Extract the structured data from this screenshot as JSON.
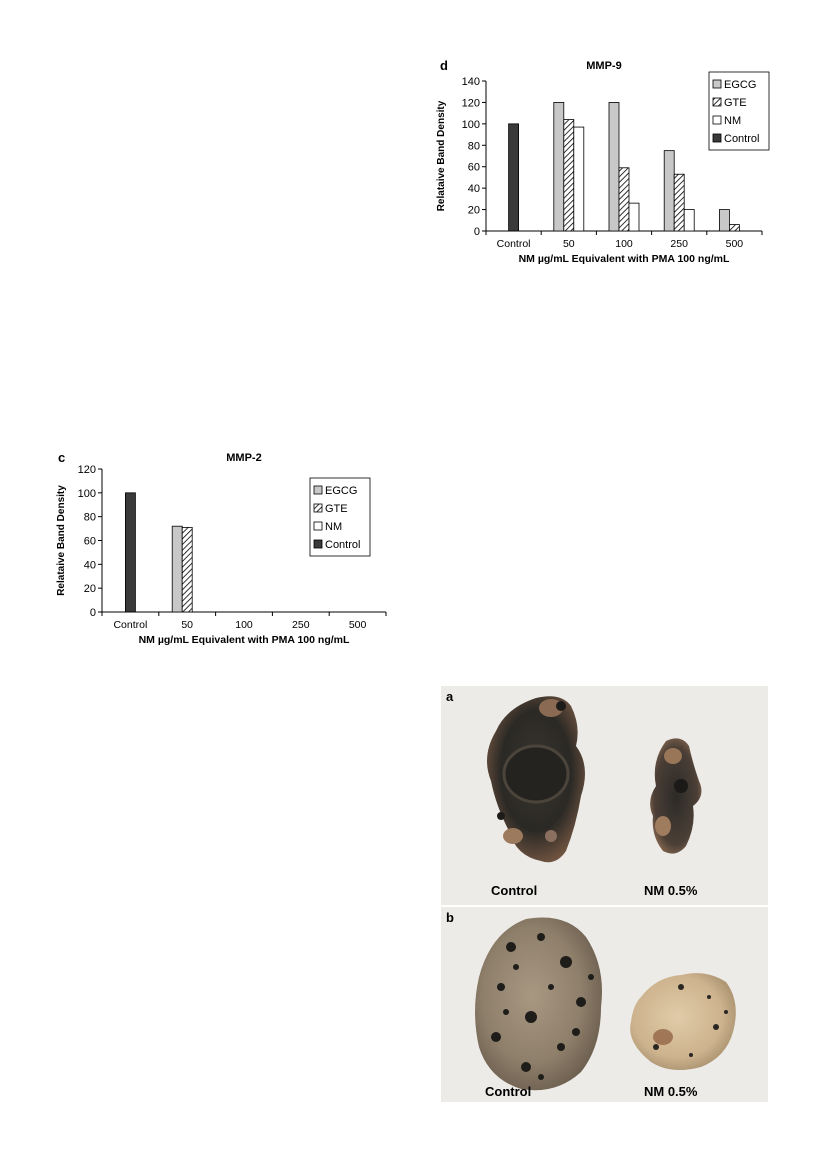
{
  "chart_data": [
    {
      "panel": "d",
      "type": "bar",
      "title": "MMP-9",
      "ylabel": "Relataive Band Density",
      "xlabel": "NM µg/mL Equivalent with PMA 100 ng/mL",
      "categories": [
        "Control",
        "50",
        "100",
        "250",
        "500"
      ],
      "ylim": [
        0,
        140
      ],
      "yticks": [
        0,
        20,
        40,
        60,
        80,
        100,
        120,
        140
      ],
      "legend_position": "right",
      "series": [
        {
          "name": "EGCG",
          "values": [
            null,
            120,
            120,
            75,
            20
          ],
          "fill": "#c8c8c8",
          "pattern": "solid"
        },
        {
          "name": "GTE",
          "values": [
            null,
            104,
            59,
            53,
            6
          ],
          "fill": "#ffffff",
          "pattern": "hatch"
        },
        {
          "name": "NM",
          "values": [
            null,
            97,
            26,
            20,
            null
          ],
          "fill": "#ffffff",
          "pattern": "solid"
        },
        {
          "name": "Control",
          "values": [
            100,
            null,
            null,
            null,
            null
          ],
          "fill": "#3a3a3a",
          "pattern": "solid"
        }
      ]
    },
    {
      "panel": "c",
      "type": "bar",
      "title": "MMP-2",
      "ylabel": "Relataive Band Density",
      "xlabel": "NM µg/mL Equivalent with PMA 100 ng/mL",
      "categories": [
        "Control",
        "50",
        "100",
        "250",
        "500"
      ],
      "ylim": [
        0,
        120
      ],
      "yticks": [
        0,
        20,
        40,
        60,
        80,
        100,
        120
      ],
      "legend_position": "right",
      "series": [
        {
          "name": "EGCG",
          "values": [
            null,
            72,
            null,
            null,
            null
          ],
          "fill": "#c8c8c8",
          "pattern": "solid"
        },
        {
          "name": "GTE",
          "values": [
            null,
            71,
            null,
            null,
            null
          ],
          "fill": "#ffffff",
          "pattern": "hatch"
        },
        {
          "name": "NM",
          "values": [
            null,
            null,
            null,
            null,
            null
          ],
          "fill": "#ffffff",
          "pattern": "solid"
        },
        {
          "name": "Control",
          "values": [
            100,
            null,
            null,
            null,
            null
          ],
          "fill": "#3a3a3a",
          "pattern": "solid"
        }
      ]
    }
  ],
  "photos": {
    "a": {
      "letter": "a",
      "left_caption": "Control",
      "right_caption": "NM 0.5%"
    },
    "b": {
      "letter": "b",
      "left_caption": "Control",
      "right_caption": "NM 0.5%"
    }
  }
}
